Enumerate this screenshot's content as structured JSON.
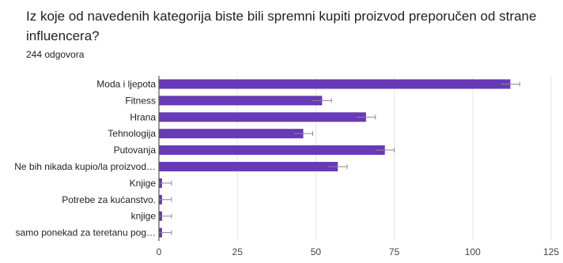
{
  "question": "Iz koje od navedenih kategorija biste bili spremni kupiti proizvod preporučen od strane influencera?",
  "responses": "244 odgovora",
  "colors": {
    "bar": "#673ab7",
    "grid": "#e6e6e6",
    "errbar": "#8a8a8a"
  },
  "chart_data": {
    "type": "bar",
    "orientation": "horizontal",
    "categories": [
      "Moda i ljepota",
      "Fitness",
      "Hrana",
      "Tehnologija",
      "Putovanja",
      "Ne bih nikada kupio/la proizvod…",
      "Knjige",
      "Potrebe za kućanstvo.",
      "knjige",
      "samo ponekad za teretanu pog…"
    ],
    "values": [
      112,
      52,
      66,
      46,
      72,
      57,
      1,
      1,
      1,
      1
    ],
    "xlim": [
      0,
      125
    ],
    "xticks": [
      0,
      25,
      50,
      75,
      100,
      125
    ],
    "error_bars": true,
    "grid": true
  }
}
